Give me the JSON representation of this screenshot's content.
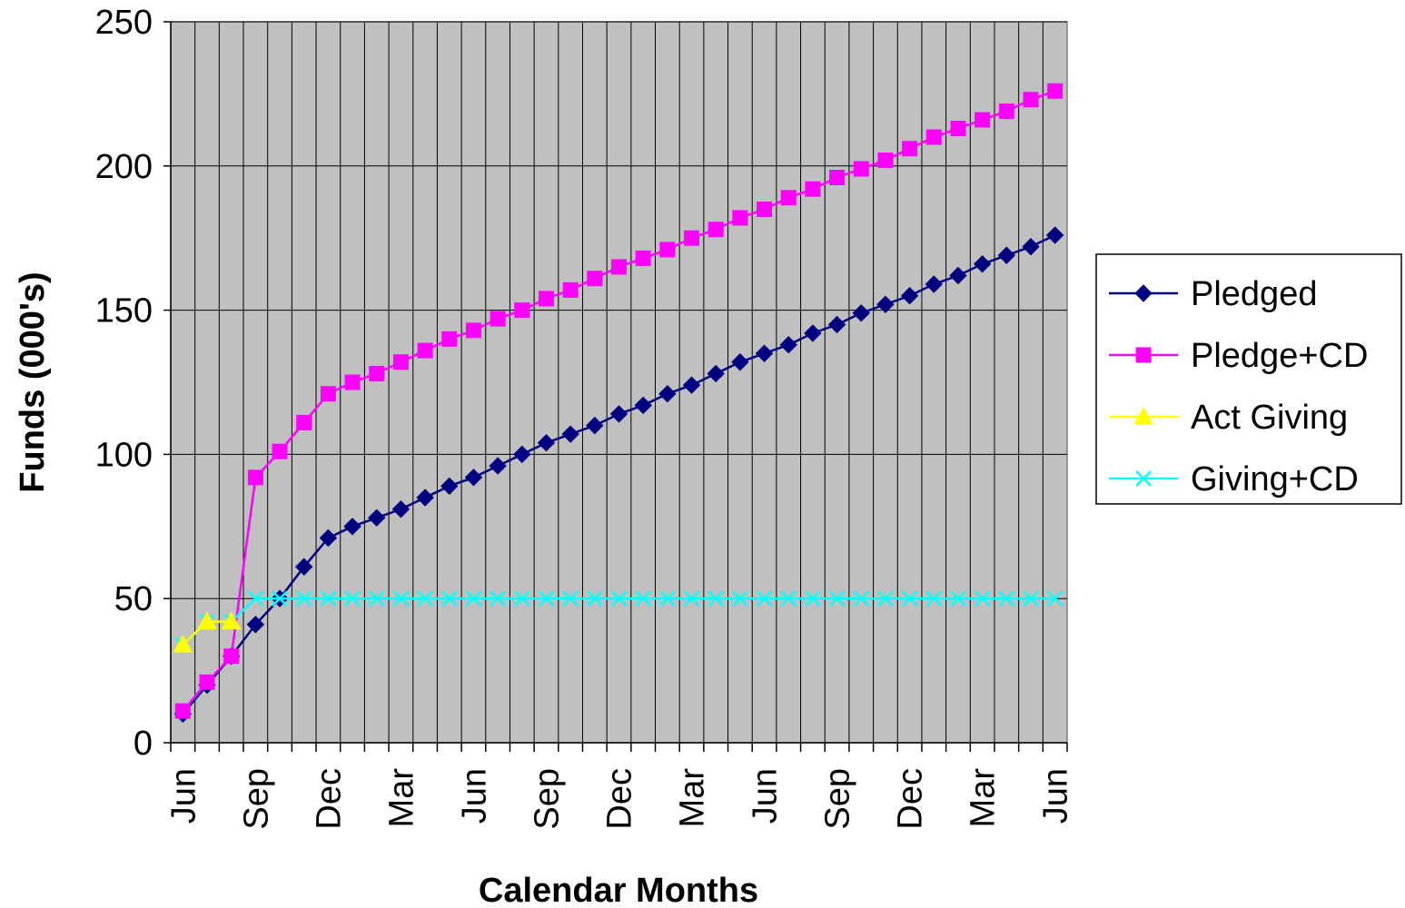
{
  "chart_data": {
    "type": "line",
    "title": "",
    "xlabel": "Calendar Months",
    "ylabel": "Funds (000's)",
    "ylim": [
      0,
      250
    ],
    "yticks": [
      0,
      50,
      100,
      150,
      200,
      250
    ],
    "grid": true,
    "legend_position": "right",
    "plot_background": "#c0c0c0",
    "x_tick_labels": [
      {
        "index": 0,
        "label": "Jun"
      },
      {
        "index": 3,
        "label": "Sep"
      },
      {
        "index": 6,
        "label": "Dec"
      },
      {
        "index": 9,
        "label": "Mar"
      },
      {
        "index": 12,
        "label": "Jun"
      },
      {
        "index": 15,
        "label": "Sep"
      },
      {
        "index": 18,
        "label": "Dec"
      },
      {
        "index": 21,
        "label": "Mar"
      },
      {
        "index": 24,
        "label": "Jun"
      },
      {
        "index": 27,
        "label": "Sep"
      },
      {
        "index": 30,
        "label": "Dec"
      },
      {
        "index": 33,
        "label": "Mar"
      },
      {
        "index": 36,
        "label": "Jun"
      }
    ],
    "n_points": 37,
    "series": [
      {
        "name": "Pledged",
        "color": "#000080",
        "marker": "diamond",
        "values": [
          10,
          20,
          30,
          41,
          50,
          61,
          71,
          75,
          78,
          81,
          85,
          89,
          92,
          96,
          100,
          104,
          107,
          110,
          114,
          117,
          121,
          124,
          128,
          132,
          135,
          138,
          142,
          145,
          149,
          152,
          155,
          159,
          162,
          166,
          169,
          172,
          176
        ]
      },
      {
        "name": "Pledge+CD",
        "color": "#ff00ff",
        "marker": "square",
        "values": [
          11,
          21,
          30,
          92,
          101,
          111,
          121,
          125,
          128,
          132,
          136,
          140,
          143,
          147,
          150,
          154,
          157,
          161,
          165,
          168,
          171,
          175,
          178,
          182,
          185,
          189,
          192,
          196,
          199,
          202,
          206,
          210,
          213,
          216,
          219,
          223,
          226
        ]
      },
      {
        "name": "Act Giving",
        "color": "#ffff00",
        "marker": "triangle",
        "values": [
          34,
          42,
          42,
          null,
          null,
          null,
          null,
          null,
          null,
          null,
          null,
          null,
          null,
          null,
          null,
          null,
          null,
          null,
          null,
          null,
          null,
          null,
          null,
          null,
          null,
          null,
          null,
          null,
          null,
          null,
          null,
          null,
          null,
          null,
          null,
          null,
          null
        ]
      },
      {
        "name": "Giving+CD",
        "color": "#00ffff",
        "marker": "x",
        "values": [
          34,
          42,
          42,
          50,
          50,
          50,
          50,
          50,
          50,
          50,
          50,
          50,
          50,
          50,
          50,
          50,
          50,
          50,
          50,
          50,
          50,
          50,
          50,
          50,
          50,
          50,
          50,
          50,
          50,
          50,
          50,
          50,
          50,
          50,
          50,
          50,
          50
        ]
      }
    ]
  }
}
